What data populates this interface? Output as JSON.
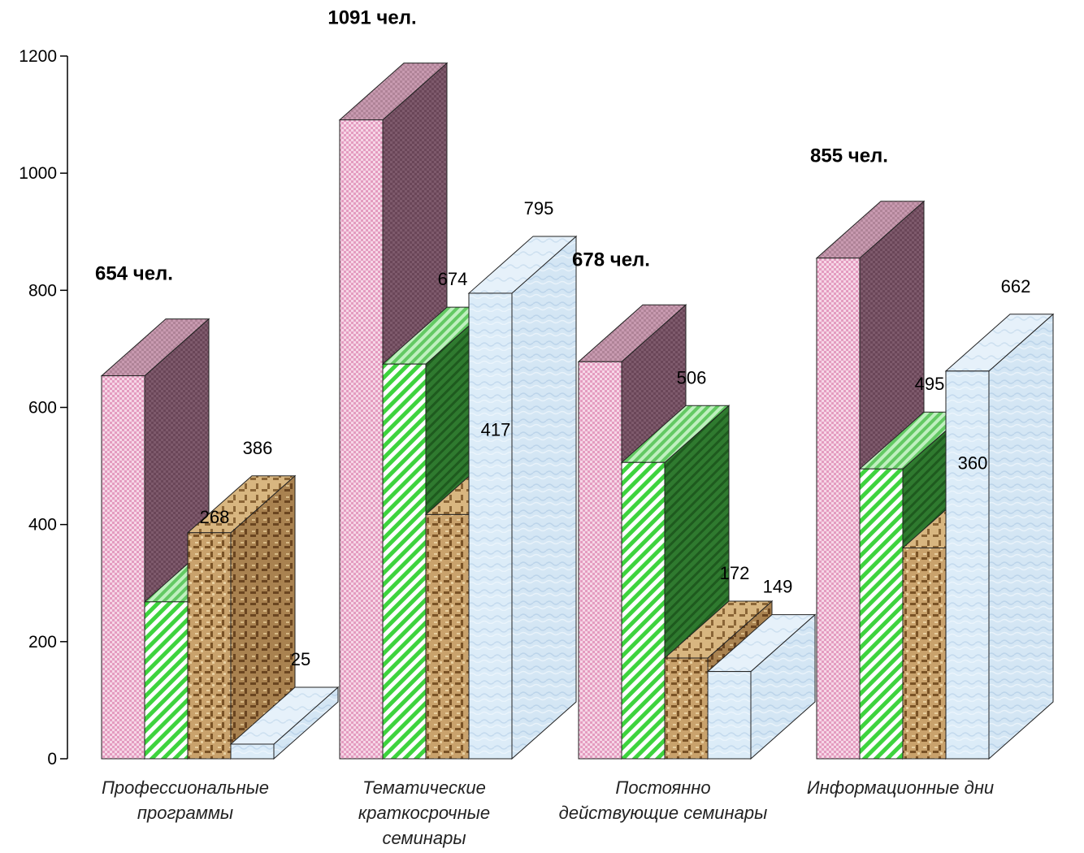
{
  "chart_data": {
    "type": "bar",
    "categories": [
      [
        "Профессиональные",
        "программы"
      ],
      [
        "Тематические",
        "краткосрочные",
        "семинары"
      ],
      [
        "Постоянно",
        "действующие семинары"
      ],
      [
        "Информационные дни"
      ]
    ],
    "totals": [
      "654 чел.",
      "1091 чел.",
      "678 чел.",
      "855 чел."
    ],
    "total_values": [
      654,
      1091,
      678,
      855
    ],
    "series": [
      {
        "values": [
          268,
          674,
          506,
          495
        ],
        "labels": [
          "268",
          "674",
          "506",
          "495"
        ]
      },
      {
        "values": [
          386,
          417,
          172,
          360
        ],
        "labels": [
          "386",
          "417",
          "172",
          "360"
        ]
      },
      {
        "values": [
          25,
          795,
          149,
          662
        ],
        "labels": [
          "25",
          "795",
          "149",
          "662"
        ]
      }
    ],
    "yticks": [
      "0",
      "200",
      "400",
      "600",
      "800",
      "1000",
      "1200"
    ],
    "ylim": [
      0,
      1200
    ],
    "grid": false,
    "colors": {
      "total_front": "#f2c6dc",
      "total_side": "#6e4a5e",
      "s1_front": "#7fe07f",
      "s1_side": "#2e7a2e",
      "s2_front": "#b58a52",
      "s2_side": "#8a6534",
      "s3_front": "#dcecf8",
      "s3_side": "#cde0f0"
    }
  }
}
